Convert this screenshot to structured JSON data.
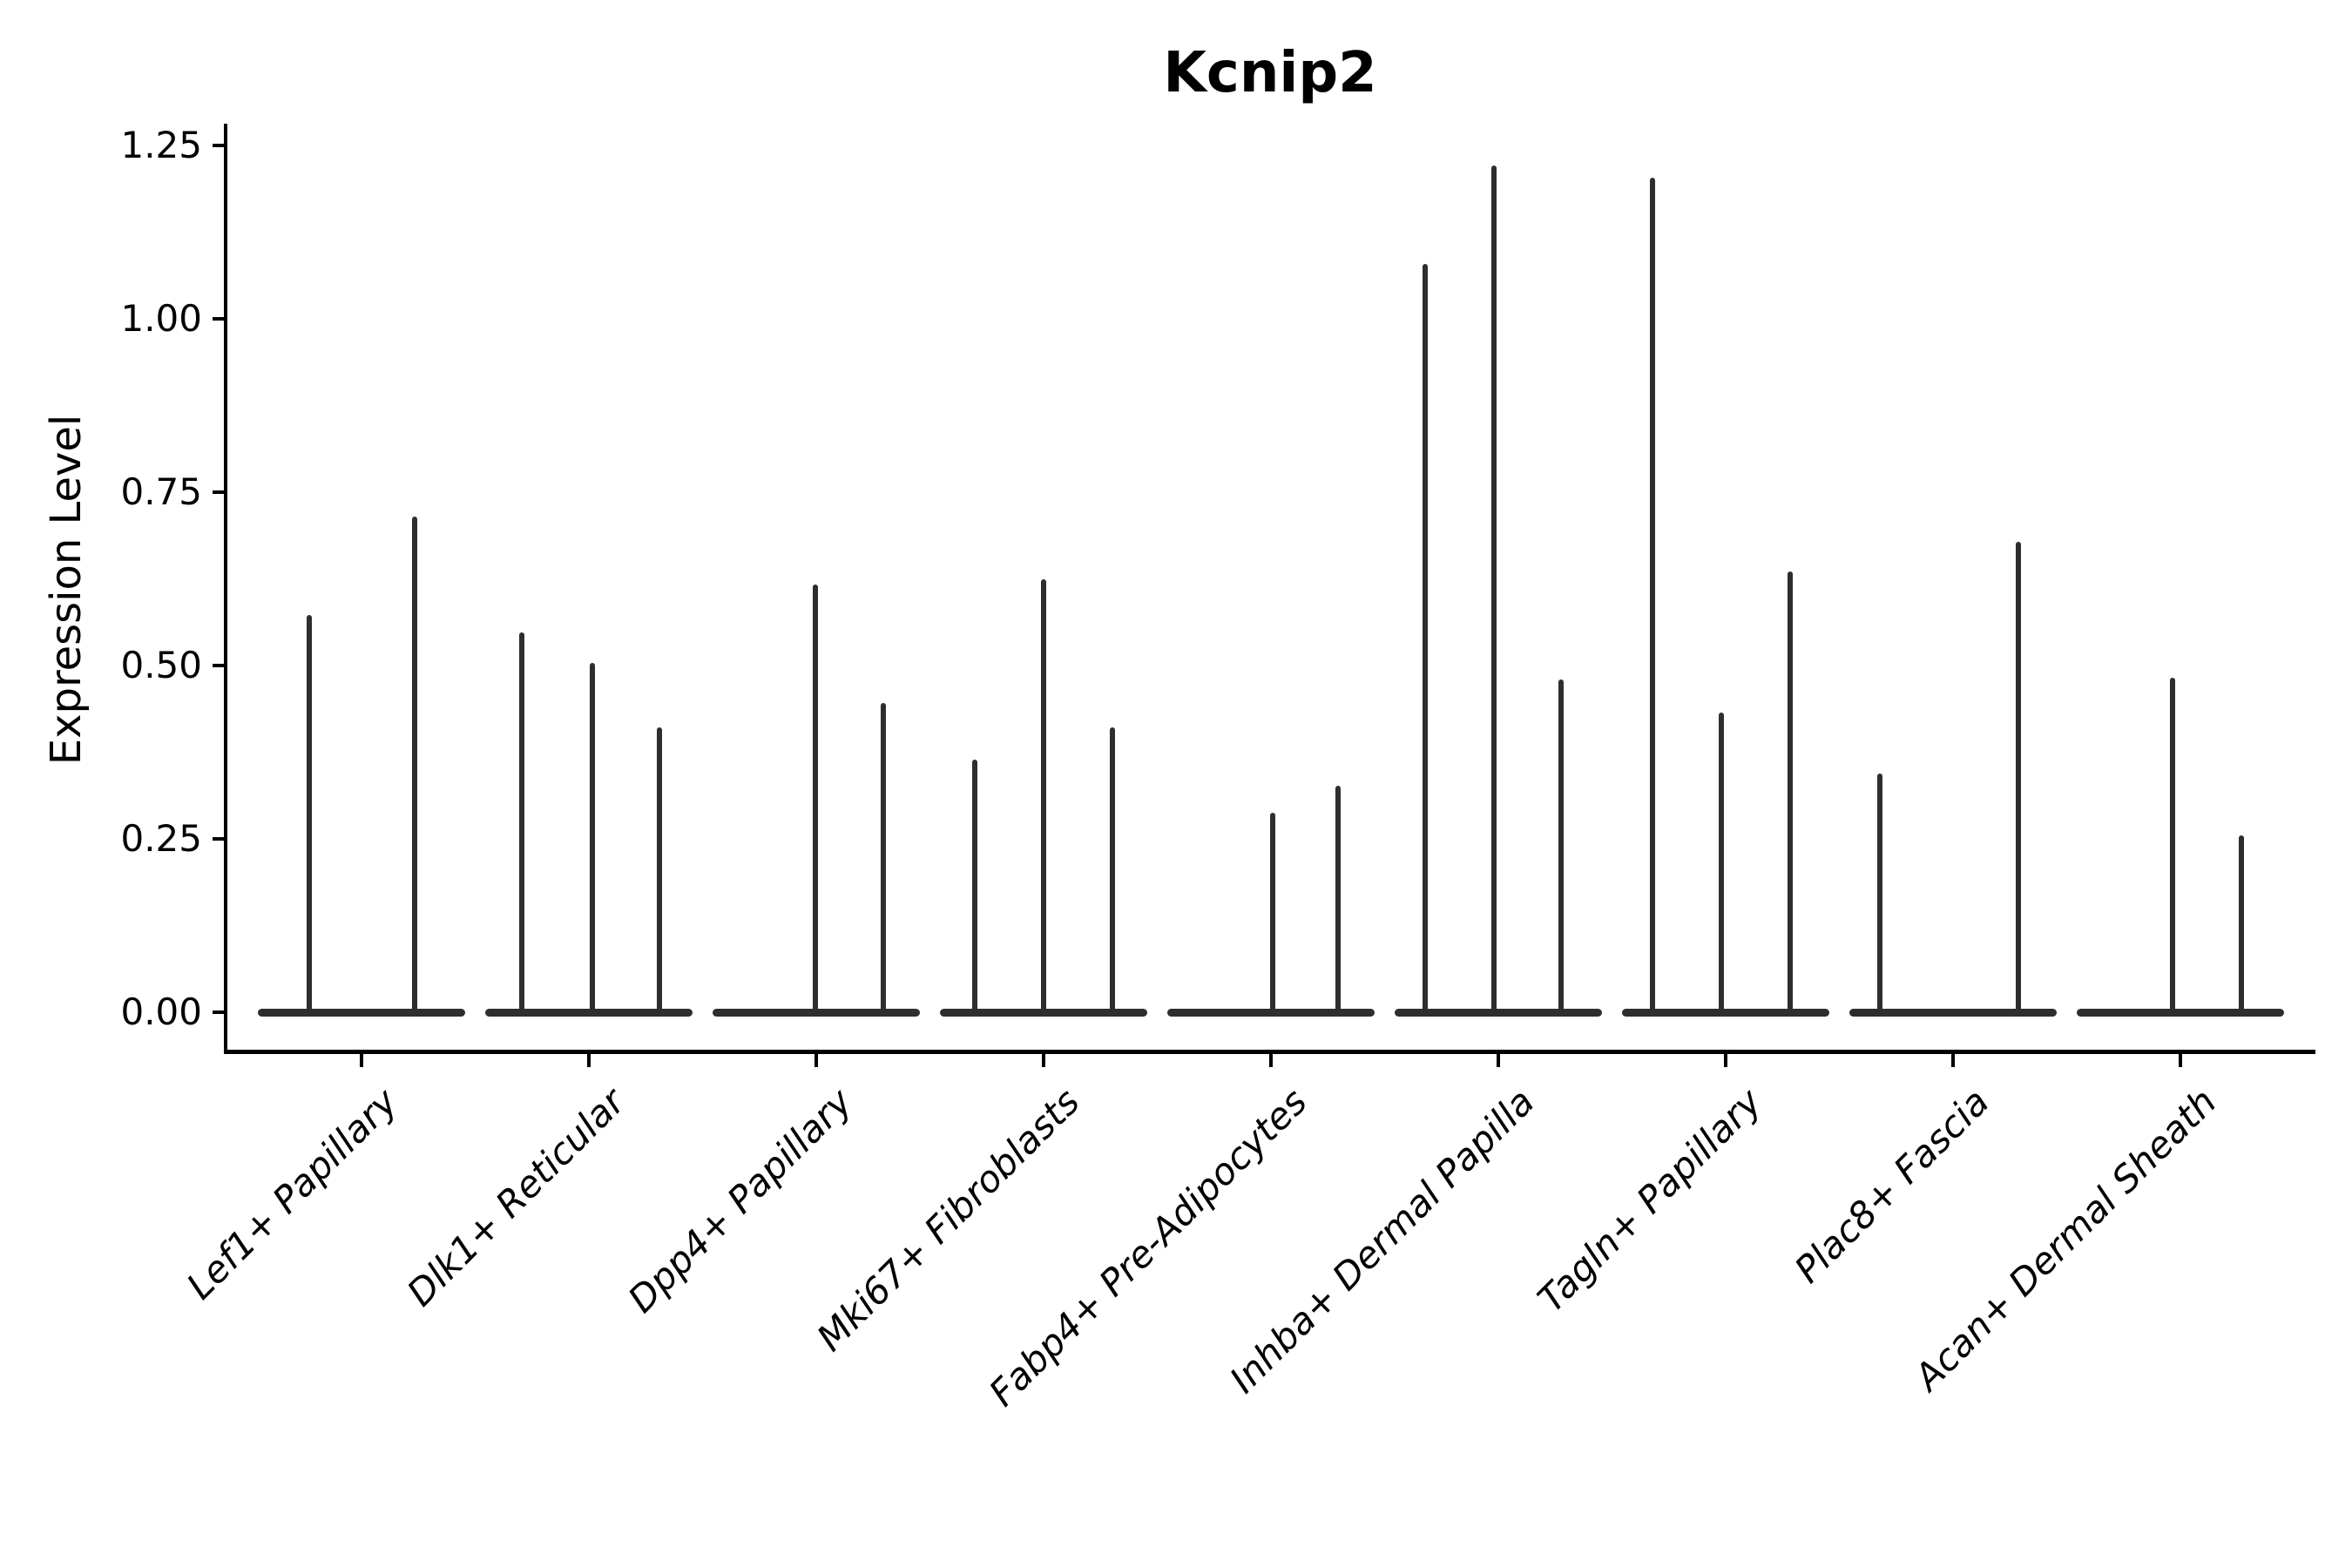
{
  "figure": {
    "background_color": "#ffffff",
    "text_color": "#000000",
    "violin_color": "#2e2e2e"
  },
  "chart_data": {
    "type": "violin",
    "title": "Kcnip2",
    "xlabel": "",
    "ylabel": "Expression Level",
    "grid": false,
    "legend": "none",
    "ylim": [
      -0.06,
      1.28
    ],
    "yticks": [
      {
        "label": "0.00",
        "value": 0.0
      },
      {
        "label": "0.25",
        "value": 0.25
      },
      {
        "label": "0.50",
        "value": 0.5
      },
      {
        "label": "0.75",
        "value": 0.75
      },
      {
        "label": "1.00",
        "value": 1.0
      },
      {
        "label": "1.25",
        "value": 1.25
      }
    ],
    "categories": [
      "Lef1+ Papillary",
      "Dlk1+ Reticular",
      "Dpp4+ Papillary",
      "Mki67+ Fibroblasts",
      "Fabp4+ Pre-Adipocytes",
      "Inhba+ Dermal Papilla",
      "Tagln+ Papillary",
      "Plac8+ Fascia",
      "Acan+ Dermal Sheath"
    ],
    "groups": [
      {
        "category": "Lef1+ Papillary",
        "spikes": [
          {
            "offset": -60,
            "peak": 0.573
          },
          {
            "offset": 61,
            "peak": 0.715
          }
        ]
      },
      {
        "category": "Dlk1+ Reticular",
        "spikes": [
          {
            "offset": -77,
            "peak": 0.548
          },
          {
            "offset": 4,
            "peak": 0.504
          },
          {
            "offset": 81,
            "peak": 0.411
          }
        ]
      },
      {
        "category": "Dpp4+ Papillary",
        "spikes": [
          {
            "offset": -1,
            "peak": 0.617
          },
          {
            "offset": 77,
            "peak": 0.446
          }
        ]
      },
      {
        "category": "Mki67+ Fibroblasts",
        "spikes": [
          {
            "offset": -79,
            "peak": 0.364
          },
          {
            "offset": 0,
            "peak": 0.624
          },
          {
            "offset": 79,
            "peak": 0.411
          }
        ]
      },
      {
        "category": "Fabp4+ Pre-Adipocytes",
        "spikes": [
          {
            "offset": 2,
            "peak": 0.288
          },
          {
            "offset": 77,
            "peak": 0.327
          }
        ]
      },
      {
        "category": "Inhba+ Dermal Papilla",
        "spikes": [
          {
            "offset": -84,
            "peak": 1.079
          },
          {
            "offset": -5,
            "peak": 1.221
          },
          {
            "offset": 72,
            "peak": 0.48
          }
        ]
      },
      {
        "category": "Tagln+ Papillary",
        "spikes": [
          {
            "offset": -84,
            "peak": 1.203
          },
          {
            "offset": -5,
            "peak": 0.432
          },
          {
            "offset": 74,
            "peak": 0.636
          }
        ]
      },
      {
        "category": "Plac8+ Fascia",
        "spikes": [
          {
            "offset": -84,
            "peak": 0.344
          },
          {
            "offset": 75,
            "peak": 0.678
          }
        ]
      },
      {
        "category": "Acan+ Dermal Sheath",
        "spikes": [
          {
            "offset": -9,
            "peak": 0.482
          },
          {
            "offset": 70,
            "peak": 0.255
          }
        ]
      }
    ]
  }
}
